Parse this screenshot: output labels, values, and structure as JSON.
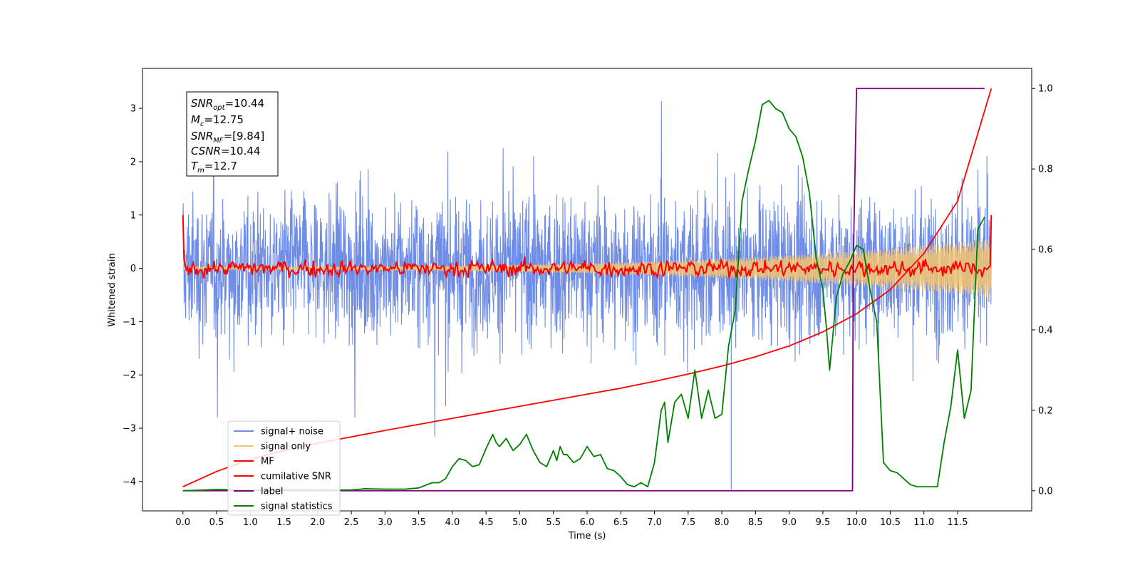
{
  "chart_data": {
    "type": "line",
    "xlabel": "Time (s)",
    "ylabel": "Whitened strain",
    "xlim": [
      -0.6,
      12.6
    ],
    "ylim": [
      -4.55,
      3.75
    ],
    "y2lim": [
      -0.05,
      1.05
    ],
    "x_ticks": [
      "0.0",
      "0.5",
      "1.0",
      "1.5",
      "2.0",
      "2.5",
      "3.0",
      "3.5",
      "4.0",
      "4.5",
      "5.0",
      "5.5",
      "6.0",
      "6.5",
      "7.0",
      "7.5",
      "8.0",
      "8.5",
      "9.0",
      "9.5",
      "10.0",
      "10.5",
      "11.0",
      "11.5"
    ],
    "y_ticks": [
      "3",
      "2",
      "1",
      "0",
      "−1",
      "−2",
      "−3",
      "−4"
    ],
    "y2_ticks": [
      "1.0",
      "0.8",
      "0.6",
      "0.4",
      "0.2",
      "0.0"
    ],
    "legend_position": "lower-left",
    "info_box": {
      "snr_opt": "=10.44",
      "mc": "=12.75",
      "snr_mf": "=[9.84]",
      "csnr": "=10.44",
      "tm": "=12.7"
    },
    "colors": {
      "signal_noise": "#6f8de6",
      "signal_only": "#f3c470",
      "mf": "#ff0000",
      "cumulative": "#ff0000",
      "label": "#800080",
      "stats": "#008000"
    },
    "series": [
      {
        "name": "signal+ noise",
        "kind": "noise",
        "axis": "left",
        "x_range": [
          0.0,
          12.0
        ],
        "std": 1.05,
        "min": -4.15,
        "max": 3.5
      },
      {
        "name": "signal only",
        "kind": "chirp",
        "axis": "left",
        "x_range": [
          0.0,
          12.0
        ],
        "amplitude_start": 0.03,
        "amplitude_end": 0.55
      },
      {
        "name": "MF",
        "kind": "matched-filter",
        "axis": "left",
        "x_range": [
          0.0,
          12.0
        ],
        "start": 1.0,
        "level": 0.0,
        "end": 1.0
      },
      {
        "name": "cumilative SNR",
        "axis": "right",
        "x": [
          0,
          0.5,
          1,
          1.5,
          2,
          2.5,
          3,
          3.5,
          4,
          4.5,
          5,
          5.5,
          6,
          6.5,
          7,
          7.5,
          8,
          8.5,
          9,
          9.5,
          10,
          10.5,
          11,
          11.5,
          12
        ],
        "y": [
          0.01,
          0.048,
          0.078,
          0.1,
          0.118,
          0.134,
          0.15,
          0.165,
          0.18,
          0.195,
          0.21,
          0.225,
          0.24,
          0.255,
          0.272,
          0.29,
          0.31,
          0.333,
          0.36,
          0.395,
          0.44,
          0.5,
          0.59,
          0.72,
          1.0
        ]
      },
      {
        "name": "label",
        "axis": "right",
        "x": [
          0,
          9.94,
          9.95,
          10.0,
          11.9
        ],
        "y": [
          0,
          0,
          0.55,
          1.0,
          1.0
        ]
      },
      {
        "name": "signal statistics",
        "axis": "right",
        "x": [
          0,
          0.5,
          1,
          1.5,
          2,
          2.5,
          2.7,
          3,
          3.3,
          3.5,
          3.7,
          3.8,
          3.9,
          4.0,
          4.1,
          4.2,
          4.3,
          4.4,
          4.5,
          4.6,
          4.65,
          4.7,
          4.8,
          4.9,
          5.0,
          5.1,
          5.2,
          5.3,
          5.4,
          5.5,
          5.55,
          5.6,
          5.65,
          5.7,
          5.8,
          5.9,
          6.0,
          6.1,
          6.2,
          6.3,
          6.4,
          6.5,
          6.6,
          6.7,
          6.8,
          6.9,
          7.0,
          7.1,
          7.15,
          7.2,
          7.3,
          7.4,
          7.5,
          7.6,
          7.7,
          7.8,
          7.9,
          8.0,
          8.1,
          8.2,
          8.3,
          8.4,
          8.5,
          8.6,
          8.7,
          8.8,
          8.9,
          9.0,
          9.1,
          9.2,
          9.3,
          9.4,
          9.5,
          9.55,
          9.6,
          9.7,
          9.8,
          9.9,
          10.0,
          10.1,
          10.2,
          10.3,
          10.4,
          10.5,
          10.6,
          10.7,
          10.8,
          10.9,
          11.0,
          11.2,
          11.3,
          11.4,
          11.5,
          11.6,
          11.7,
          11.8,
          11.9
        ],
        "y": [
          0,
          0.003,
          0.002,
          0.003,
          0.002,
          0.002,
          0.005,
          0.004,
          0.004,
          0.007,
          0.02,
          0.02,
          0.03,
          0.06,
          0.08,
          0.075,
          0.06,
          0.065,
          0.105,
          0.14,
          0.12,
          0.11,
          0.13,
          0.1,
          0.115,
          0.14,
          0.1,
          0.07,
          0.06,
          0.1,
          0.075,
          0.11,
          0.09,
          0.09,
          0.07,
          0.08,
          0.11,
          0.085,
          0.09,
          0.055,
          0.05,
          0.035,
          0.015,
          0.01,
          0.02,
          0.01,
          0.07,
          0.2,
          0.22,
          0.12,
          0.22,
          0.24,
          0.18,
          0.3,
          0.18,
          0.25,
          0.18,
          0.19,
          0.36,
          0.45,
          0.72,
          0.8,
          0.87,
          0.96,
          0.97,
          0.95,
          0.94,
          0.9,
          0.88,
          0.83,
          0.74,
          0.58,
          0.5,
          0.41,
          0.3,
          0.48,
          0.54,
          0.57,
          0.61,
          0.6,
          0.5,
          0.42,
          0.07,
          0.05,
          0.045,
          0.03,
          0.015,
          0.01,
          0.01,
          0.01,
          0.12,
          0.21,
          0.35,
          0.18,
          0.25,
          0.65,
          0.68
        ]
      }
    ]
  }
}
